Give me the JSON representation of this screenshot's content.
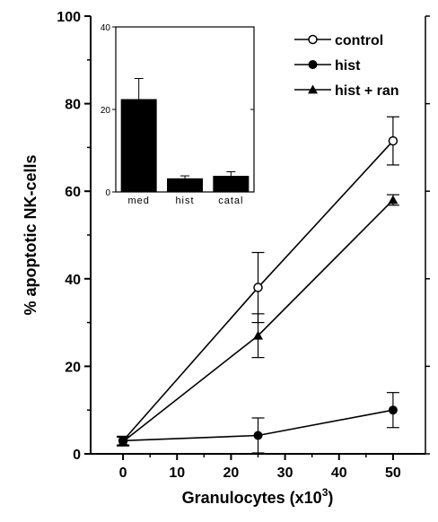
{
  "chart_data": [
    {
      "type": "line",
      "title": "",
      "xlabel": "Granulocytes (x10",
      "xlabel_superscript": "3",
      "xlabel_suffix": ")",
      "ylabel": "% apoptotic NK-cells",
      "xlim": [
        -6,
        56
      ],
      "ylim": [
        0,
        100
      ],
      "xticks": [
        0,
        10,
        20,
        30,
        40,
        50
      ],
      "yticks": [
        0,
        20,
        40,
        60,
        80,
        100
      ],
      "x": [
        0,
        25,
        50
      ],
      "series": [
        {
          "name": "control",
          "marker": "open-circle",
          "values": [
            3,
            38,
            71.5
          ],
          "error": [
            1,
            8,
            5.5
          ]
        },
        {
          "name": "hist",
          "marker": "filled-circle",
          "values": [
            3,
            4.2,
            10
          ],
          "error": [
            1,
            4,
            4
          ]
        },
        {
          "name": "hist + ran",
          "marker": "filled-triangle",
          "values": [
            2.8,
            27,
            58
          ],
          "error": [
            1,
            5,
            1.2
          ]
        }
      ],
      "legend": "top-right",
      "grid": false
    },
    {
      "type": "bar",
      "placement": "inset top-left",
      "categories": [
        "med",
        "hist",
        "catal"
      ],
      "values": [
        22.5,
        3.3,
        3.9
      ],
      "error": [
        5,
        0.6,
        1
      ],
      "ylim": [
        0,
        40
      ],
      "yticks": [
        0,
        20,
        40
      ],
      "color": "#000000"
    }
  ]
}
